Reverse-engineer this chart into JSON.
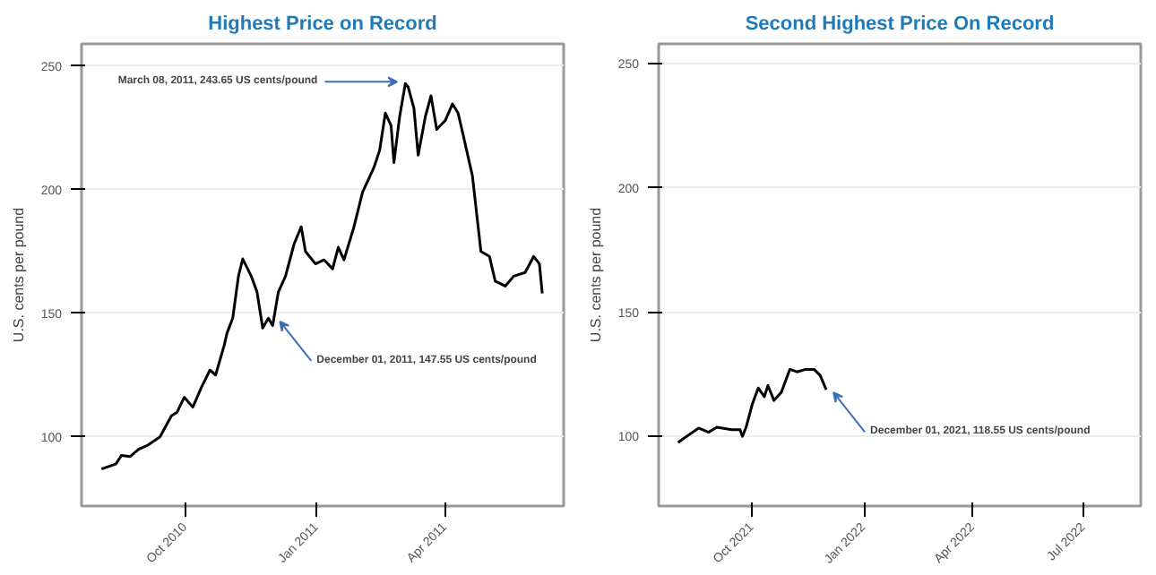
{
  "chart_data": [
    {
      "type": "line",
      "title": "Highest Price on Record",
      "ylabel": "U.S. cents per pound",
      "x": [
        "2010-08-03",
        "2010-08-13",
        "2010-08-17",
        "2010-08-23",
        "2010-08-29",
        "2010-09-04",
        "2010-09-13",
        "2010-09-21",
        "2010-09-25",
        "2010-09-30",
        "2010-10-06",
        "2010-10-12",
        "2010-10-18",
        "2010-10-22",
        "2010-10-28",
        "2010-10-30",
        "2010-11-03",
        "2010-11-07",
        "2010-11-10",
        "2010-11-16",
        "2010-11-20",
        "2010-11-24",
        "2010-11-28",
        "2010-12-01",
        "2010-12-05",
        "2010-12-10",
        "2010-12-16",
        "2010-12-21",
        "2010-12-24",
        "2010-12-31",
        "2011-01-06",
        "2011-01-12",
        "2011-01-16",
        "2011-01-20",
        "2011-01-27",
        "2011-02-02",
        "2011-02-06",
        "2011-02-10",
        "2011-02-14",
        "2011-02-18",
        "2011-02-22",
        "2011-02-24",
        "2011-02-28",
        "2011-03-04",
        "2011-03-06",
        "2011-03-10",
        "2011-03-13",
        "2011-03-18",
        "2011-03-22",
        "2011-03-26",
        "2011-04-01",
        "2011-04-06",
        "2011-04-10",
        "2011-04-14",
        "2011-04-20",
        "2011-04-26",
        "2011-05-02",
        "2011-05-06",
        "2011-05-13",
        "2011-05-19",
        "2011-05-27",
        "2011-06-02",
        "2011-06-06",
        "2011-06-08"
      ],
      "series": [
        {
          "color": "#000000",
          "values": [
            87,
            89,
            92.5,
            92,
            95,
            96.5,
            100,
            108.5,
            110,
            116,
            112,
            120,
            127,
            125,
            137,
            142,
            148,
            165,
            172,
            165,
            158.7,
            144,
            148,
            145,
            158.7,
            165,
            178,
            185,
            175,
            170,
            171.6,
            168,
            176.7,
            171.6,
            185,
            199,
            204,
            209,
            216,
            231,
            226,
            211,
            229.5,
            243,
            241.5,
            233,
            214,
            229.5,
            238,
            224.4,
            228,
            234.7,
            231,
            221,
            205.7,
            175,
            173,
            163,
            161,
            165,
            166.5,
            173,
            170,
            158
          ]
        }
      ],
      "xlim": [
        "2010-07-20",
        "2011-06-23"
      ],
      "ylim": [
        72,
        259
      ],
      "xticks": [
        {
          "value": "2010-10-01",
          "label": "Oct 2010"
        },
        {
          "value": "2011-01-01",
          "label": "Jan 2011"
        },
        {
          "value": "2011-04-01",
          "label": "Apr 2011"
        }
      ],
      "yticks": [
        100,
        150,
        200,
        250
      ],
      "grid": true,
      "line_style": "solid",
      "annotations": [
        {
          "text": "March 08, 2011, 243.65 US cents/pound",
          "x": "2011-03-05",
          "y": 243.65
        },
        {
          "text": "December 01, 2011, 147.55 US cents/pound",
          "x": "2010-12-01",
          "y": 147.55
        }
      ]
    },
    {
      "type": "line",
      "title": "Second Highest Price On Record",
      "ylabel": "U.S. cents per pound",
      "x": [
        "2021-08-01",
        "2021-08-11",
        "2021-08-18",
        "2021-08-26",
        "2021-09-02",
        "2021-09-14",
        "2021-09-21",
        "2021-09-23",
        "2021-09-26",
        "2021-10-01",
        "2021-10-06",
        "2021-10-11",
        "2021-10-14",
        "2021-10-19",
        "2021-10-25",
        "2021-11-01",
        "2021-11-07",
        "2021-11-14",
        "2021-11-21",
        "2021-11-26",
        "2021-12-01"
      ],
      "series": [
        {
          "color": "#000000",
          "values": [
            97.6,
            101,
            103.4,
            101.7,
            103.7,
            102.7,
            102.7,
            100,
            103.7,
            112.8,
            119.5,
            116,
            120.5,
            114.5,
            117.8,
            127,
            126,
            127,
            127,
            124.6,
            118.8
          ]
        }
      ],
      "xlim": [
        "2021-07-16",
        "2022-08-17"
      ],
      "ylim": [
        72,
        258
      ],
      "xticks": [
        {
          "value": "2021-10-01",
          "label": "Oct 2021"
        },
        {
          "value": "2022-01-01",
          "label": "Jan 2022"
        },
        {
          "value": "2022-04-01",
          "label": "Apr 2022"
        },
        {
          "value": "2022-07-01",
          "label": "Jul 2022"
        }
      ],
      "yticks": [
        100,
        150,
        200,
        250
      ],
      "grid": true,
      "line_style": "solid",
      "annotations": [
        {
          "text": "December 01, 2021, 118.55 US cents/pound",
          "x": "2021-12-01",
          "y": 118.55
        }
      ]
    }
  ]
}
